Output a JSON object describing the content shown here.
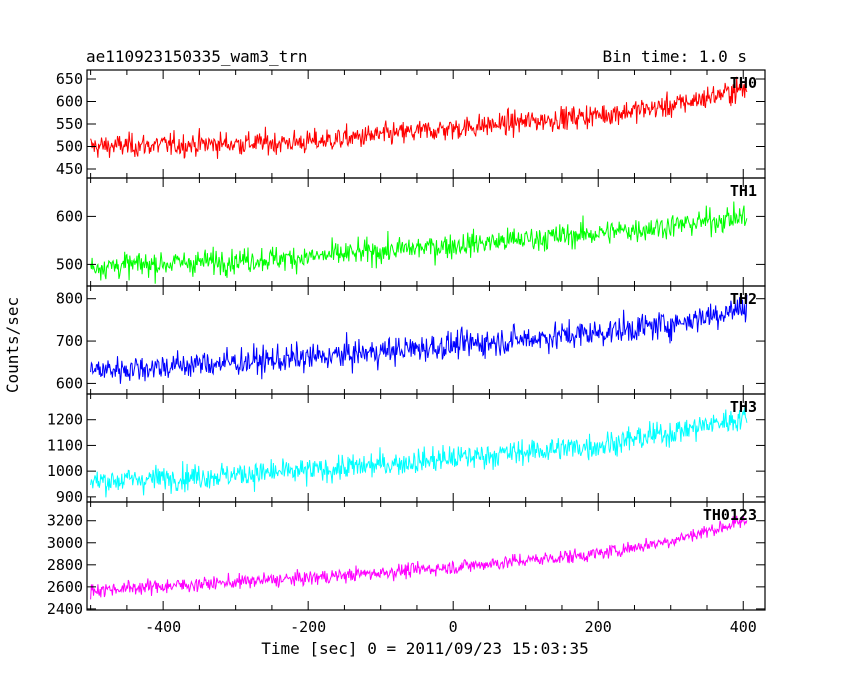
{
  "header": {
    "left_title": "ae110923150335_wam3_trn",
    "right_title": "Bin time: 1.0 s"
  },
  "chart_data": {
    "type": "line",
    "xlabel": "Time [sec] 0 = 2011/09/23 15:03:35",
    "ylabel": "Counts/sec",
    "xlim": [
      -505,
      430
    ],
    "xticks": [
      -400,
      -200,
      0,
      200,
      400
    ],
    "x_range": [
      -500,
      405
    ],
    "bin_time_s": 1.0,
    "panels": [
      {
        "name": "TH0",
        "color": "#ff0000",
        "ylim": [
          430,
          670
        ],
        "yticks": [
          450,
          500,
          550,
          600,
          650
        ],
        "trend": [
          [
            -500,
            500
          ],
          [
            -200,
            510
          ],
          [
            0,
            540
          ],
          [
            200,
            570
          ],
          [
            300,
            590
          ],
          [
            405,
            630
          ]
        ],
        "noise": 22
      },
      {
        "name": "TH1",
        "color": "#00ff00",
        "ylim": [
          455,
          680
        ],
        "yticks": [
          500,
          600
        ],
        "trend": [
          [
            -500,
            495
          ],
          [
            -200,
            515
          ],
          [
            0,
            540
          ],
          [
            200,
            565
          ],
          [
            300,
            580
          ],
          [
            405,
            600
          ]
        ],
        "noise": 22
      },
      {
        "name": "TH2",
        "color": "#0000ff",
        "ylim": [
          575,
          830
        ],
        "yticks": [
          600,
          700,
          800
        ],
        "trend": [
          [
            -500,
            630
          ],
          [
            -200,
            660
          ],
          [
            0,
            690
          ],
          [
            200,
            720
          ],
          [
            300,
            740
          ],
          [
            405,
            780
          ]
        ],
        "noise": 28
      },
      {
        "name": "TH3",
        "color": "#00ffff",
        "ylim": [
          880,
          1300
        ],
        "yticks": [
          900,
          1000,
          1100,
          1200
        ],
        "trend": [
          [
            -500,
            960
          ],
          [
            -200,
            1000
          ],
          [
            0,
            1050
          ],
          [
            200,
            1100
          ],
          [
            300,
            1150
          ],
          [
            405,
            1210
          ]
        ],
        "noise": 42
      },
      {
        "name": "TH0123",
        "color": "#ff00ff",
        "ylim": [
          2390,
          3370
        ],
        "yticks": [
          2400,
          2600,
          2800,
          3000,
          3200
        ],
        "trend": [
          [
            -500,
            2570
          ],
          [
            -200,
            2680
          ],
          [
            0,
            2780
          ],
          [
            200,
            2900
          ],
          [
            300,
            3020
          ],
          [
            405,
            3200
          ]
        ],
        "noise": 55
      }
    ]
  }
}
